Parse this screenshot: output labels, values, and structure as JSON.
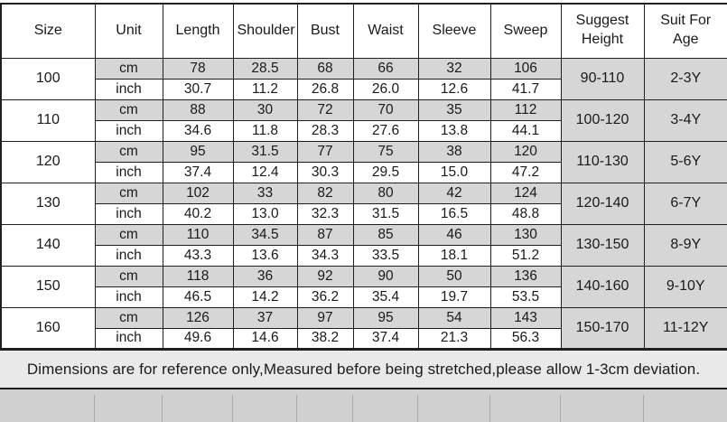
{
  "table": {
    "headers": [
      "Size",
      "Unit",
      "Length",
      "Shoulder",
      "Bust",
      "Waist",
      "Sleeve",
      "Sweep",
      "Suggest Height",
      "Suit For Age"
    ],
    "unit_labels": {
      "cm": "cm",
      "inch": "inch"
    },
    "rows": [
      {
        "size": "100",
        "cm": [
          "78",
          "28.5",
          "68",
          "66",
          "32",
          "106"
        ],
        "inch": [
          "30.7",
          "11.2",
          "26.8",
          "26.0",
          "12.6",
          "41.7"
        ],
        "height": "90-110",
        "age": "2-3Y"
      },
      {
        "size": "110",
        "cm": [
          "88",
          "30",
          "72",
          "70",
          "35",
          "112"
        ],
        "inch": [
          "34.6",
          "11.8",
          "28.3",
          "27.6",
          "13.8",
          "44.1"
        ],
        "height": "100-120",
        "age": "3-4Y"
      },
      {
        "size": "120",
        "cm": [
          "95",
          "31.5",
          "77",
          "75",
          "38",
          "120"
        ],
        "inch": [
          "37.4",
          "12.4",
          "30.3",
          "29.5",
          "15.0",
          "47.2"
        ],
        "height": "110-130",
        "age": "5-6Y"
      },
      {
        "size": "130",
        "cm": [
          "102",
          "33",
          "82",
          "80",
          "42",
          "124"
        ],
        "inch": [
          "40.2",
          "13.0",
          "32.3",
          "31.5",
          "16.5",
          "48.8"
        ],
        "height": "120-140",
        "age": "6-7Y"
      },
      {
        "size": "140",
        "cm": [
          "110",
          "34.5",
          "87",
          "85",
          "46",
          "130"
        ],
        "inch": [
          "43.3",
          "13.6",
          "34.3",
          "33.5",
          "18.1",
          "51.2"
        ],
        "height": "130-150",
        "age": "8-9Y"
      },
      {
        "size": "150",
        "cm": [
          "118",
          "36",
          "92",
          "90",
          "50",
          "136"
        ],
        "inch": [
          "46.5",
          "14.2",
          "36.2",
          "35.4",
          "19.7",
          "53.5"
        ],
        "height": "140-160",
        "age": "9-10Y"
      },
      {
        "size": "160",
        "cm": [
          "126",
          "37",
          "97",
          "95",
          "54",
          "143"
        ],
        "inch": [
          "49.6",
          "14.6",
          "38.2",
          "37.4",
          "21.3",
          "56.3"
        ],
        "height": "150-170",
        "age": "11-12Y"
      }
    ]
  },
  "note": "Dimensions are for reference only,Measured before being stretched,please allow 1-3cm deviation.",
  "colors": {
    "shaded_cell": "#d6d6d6",
    "note_background": "#e9e9e9",
    "footer_strip": "#d0d0d0",
    "border": "#1f1f1f"
  }
}
